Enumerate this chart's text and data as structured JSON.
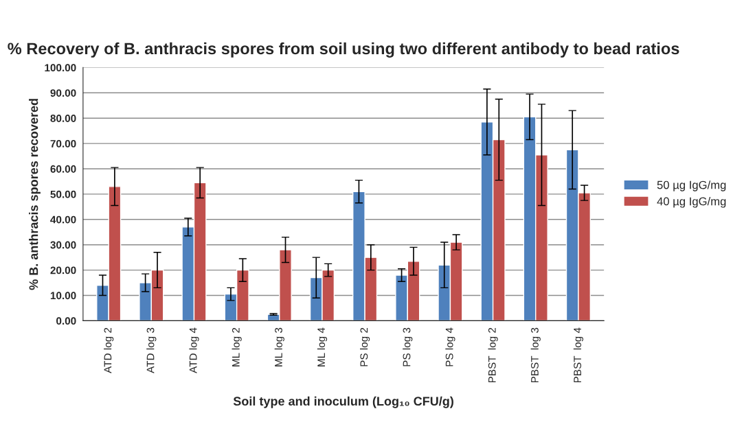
{
  "chart_data": {
    "type": "bar",
    "title": "% Recovery of B. anthracis spores from soil using two different antibody to bead ratios",
    "xlabel": "Soil type and inoculum (Log₁₀ CFU/g)",
    "ylabel": "% B. anthracis spores recovered",
    "categories": [
      "ATD log 2",
      "ATD log 3",
      "ATD log 4",
      "ML log 2",
      "ML log 3",
      "ML log 4",
      "PS log 2",
      "PS log 3",
      "PS log 4",
      "PBST  log 2",
      "PBST  log 3",
      "PBST  log 4"
    ],
    "series": [
      {
        "name": "50 µg IgG/mg",
        "color": "#4f81bd",
        "values": [
          14,
          15,
          37,
          10.5,
          2.5,
          17,
          51,
          18,
          22,
          78.5,
          80.5,
          67.5
        ],
        "errors": [
          4,
          3.5,
          3.5,
          2.5,
          0.3,
          8,
          4.5,
          2.5,
          9,
          13,
          9,
          15.5
        ]
      },
      {
        "name": "40 µg IgG/mg",
        "color": "#c0504d",
        "values": [
          53,
          20,
          54.5,
          20,
          28,
          20,
          25,
          23.5,
          31,
          71.5,
          65.5,
          50.5
        ],
        "errors": [
          7.5,
          7,
          6,
          4.5,
          5,
          2.5,
          5,
          5.5,
          3,
          16,
          20,
          3
        ]
      }
    ],
    "ylim": [
      0,
      100
    ],
    "yticks": [
      {
        "value": 0,
        "label": "0.00"
      },
      {
        "value": 10,
        "label": "10.00"
      },
      {
        "value": 20,
        "label": "20.00"
      },
      {
        "value": 30,
        "label": "30.00"
      },
      {
        "value": 40,
        "label": "40.00"
      },
      {
        "value": 50,
        "label": "50.00"
      },
      {
        "value": 60,
        "label": "60.00"
      },
      {
        "value": 70,
        "label": "70.00"
      },
      {
        "value": 80,
        "label": "80.00"
      },
      {
        "value": 90,
        "label": "90.00"
      },
      {
        "value": 100,
        "label": "100.00"
      }
    ],
    "grid": "y",
    "legend": "right"
  }
}
